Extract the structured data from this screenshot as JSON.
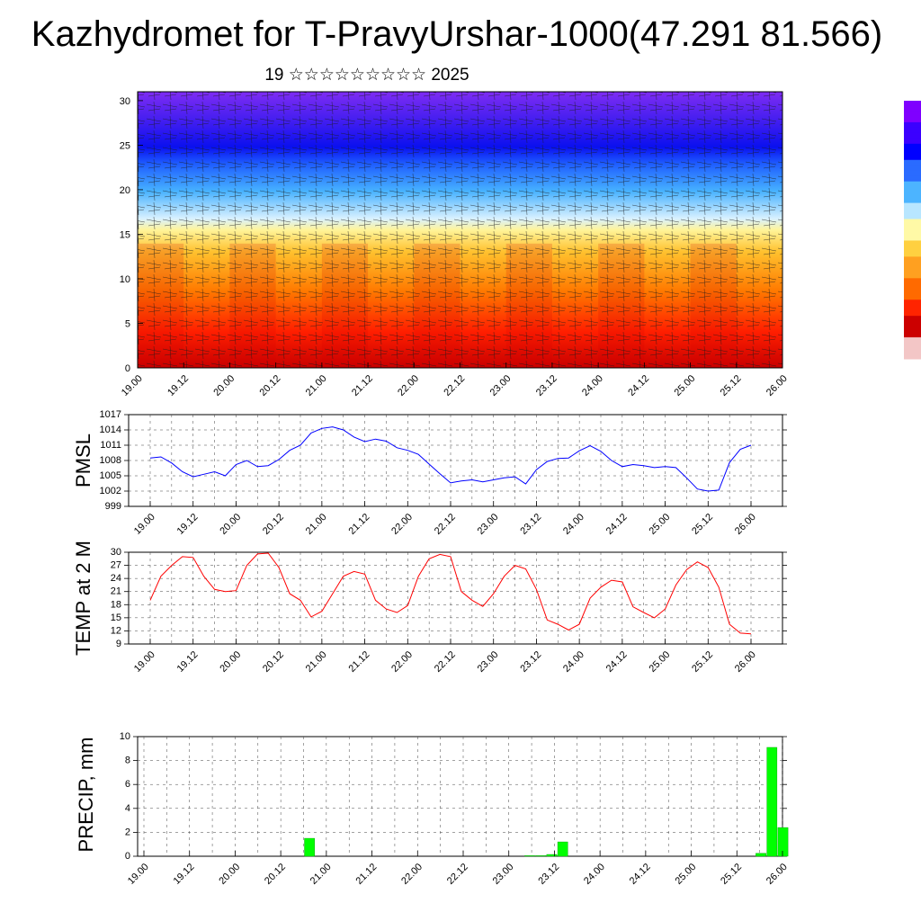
{
  "title": "Kazhydromet for T-PravyUrshar-1000(47.291 81.566)",
  "subtitle": "19 ☆☆☆☆☆☆☆☆☆ 2025",
  "time_labels": [
    "19.00",
    "19.12",
    "20.00",
    "20.12",
    "21.00",
    "21.12",
    "22.00",
    "22.12",
    "23.00",
    "23.12",
    "24.00",
    "24.12",
    "25.00",
    "25.12",
    "26.00"
  ],
  "colorbar_colors": [
    "#7f00ff",
    "#3b00ff",
    "#0000ff",
    "#2a6bff",
    "#4cb4ff",
    "#b8e6ff",
    "#fff9a6",
    "#ffd040",
    "#ffa020",
    "#ff6a00",
    "#ff2400",
    "#cc0000",
    "#f3c6c6"
  ],
  "chart_data": [
    {
      "type": "heatmap",
      "name": "cross-section",
      "y_ticks": [
        0,
        5,
        10,
        15,
        20,
        25,
        30
      ],
      "ylim": [
        0,
        31
      ],
      "x": [
        "19.00",
        "19.12",
        "20.00",
        "20.12",
        "21.00",
        "21.12",
        "22.00",
        "22.12",
        "23.00",
        "23.12",
        "24.00",
        "24.12",
        "25.00",
        "25.12",
        "26.00"
      ]
    },
    {
      "type": "line",
      "ylabel": "PMSL",
      "ylim": [
        999,
        1017
      ],
      "y_ticks": [
        999,
        1002,
        1005,
        1008,
        1011,
        1014,
        1017
      ],
      "color": "#0000ff",
      "values": [
        1008.5,
        1008.7,
        1007.5,
        1005.8,
        1004.8,
        1005.3,
        1005.8,
        1005.0,
        1007.2,
        1008.0,
        1006.8,
        1007.0,
        1008.2,
        1010.0,
        1011.0,
        1013.4,
        1014.3,
        1014.6,
        1014.0,
        1012.6,
        1011.7,
        1012.2,
        1011.8,
        1010.5,
        1010.0,
        1009.2,
        1007.3,
        1005.4,
        1003.6,
        1004.0,
        1004.2,
        1003.8,
        1004.2,
        1004.6,
        1004.8,
        1003.4,
        1006.2,
        1007.8,
        1008.4,
        1008.5,
        1009.9,
        1010.9,
        1009.8,
        1008.0,
        1006.8,
        1007.2,
        1007.0,
        1006.6,
        1006.8,
        1006.6,
        1004.6,
        1002.4,
        1002.0,
        1002.2,
        1007.6,
        1010.2,
        1011.0
      ]
    },
    {
      "type": "line",
      "ylabel": "TEMP at 2 M",
      "ylim": [
        9,
        30
      ],
      "y_ticks": [
        9,
        12,
        15,
        18,
        21,
        24,
        27,
        30
      ],
      "color": "#ff0000",
      "values": [
        19.0,
        24.5,
        27.0,
        29.0,
        28.8,
        24.5,
        21.5,
        21.0,
        21.2,
        27.0,
        29.6,
        29.8,
        26.5,
        20.5,
        19.0,
        15.2,
        16.5,
        20.5,
        24.5,
        25.6,
        25.0,
        19.0,
        17.0,
        16.2,
        17.8,
        24.5,
        28.5,
        29.5,
        29.0,
        21.0,
        19.0,
        17.6,
        20.5,
        24.5,
        27.0,
        26.2,
        21.5,
        14.5,
        13.5,
        12.2,
        13.5,
        19.5,
        22.0,
        23.6,
        23.2,
        17.5,
        16.2,
        15.0,
        17.0,
        22.5,
        26.0,
        27.8,
        26.5,
        22.0,
        13.5,
        11.5,
        11.3
      ]
    },
    {
      "type": "bar",
      "ylabel": "PRECIP, mm",
      "ylim": [
        0,
        10
      ],
      "y_ticks": [
        0,
        2,
        4,
        6,
        8,
        10
      ],
      "color": "#00ff00",
      "values": [
        0,
        0,
        0,
        0,
        0,
        0,
        0,
        0,
        0,
        0,
        0,
        0,
        0,
        0,
        0,
        1.5,
        0,
        0,
        0,
        0,
        0,
        0,
        0,
        0,
        0,
        0,
        0,
        0,
        0,
        0,
        0,
        0,
        0,
        0,
        0,
        0.05,
        0.05,
        0.15,
        1.2,
        0,
        0,
        0,
        0,
        0,
        0,
        0,
        0,
        0,
        0,
        0,
        0,
        0,
        0,
        0,
        0,
        0,
        0.25,
        9.1,
        2.4
      ]
    }
  ]
}
